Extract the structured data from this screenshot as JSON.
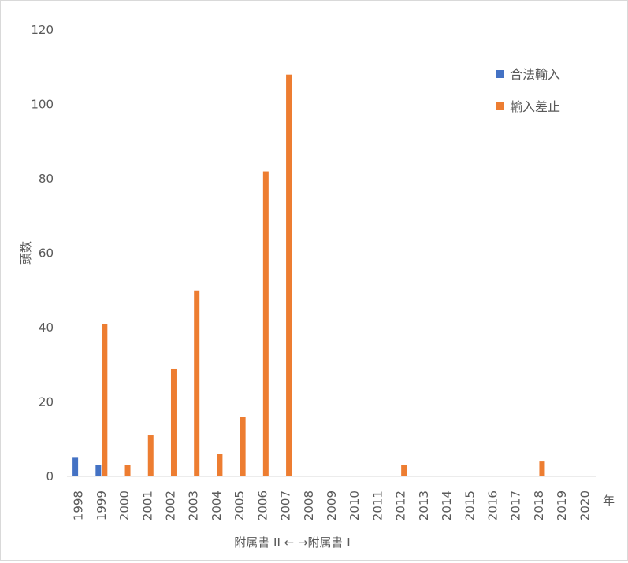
{
  "chart_data": {
    "type": "bar",
    "categories": [
      "1998",
      "1999",
      "2000",
      "2001",
      "2002",
      "2003",
      "2004",
      "2005",
      "2006",
      "2007",
      "2008",
      "2009",
      "2010",
      "2011",
      "2012",
      "2013",
      "2014",
      "2015",
      "2016",
      "2017",
      "2018",
      "2019",
      "2020"
    ],
    "series": [
      {
        "name": "合法輸入",
        "color": "#4472C4",
        "values": [
          5,
          3,
          0,
          0,
          0,
          0,
          0,
          0,
          0,
          0,
          0,
          0,
          0,
          0,
          0,
          0,
          0,
          0,
          0,
          0,
          0,
          0,
          0
        ]
      },
      {
        "name": "輸入差止",
        "color": "#ED7D31",
        "values": [
          0,
          41,
          3,
          11,
          29,
          50,
          6,
          16,
          82,
          108,
          0,
          0,
          0,
          0,
          3,
          0,
          0,
          0,
          0,
          0,
          4,
          0,
          0
        ]
      }
    ],
    "ylabel": "頭数",
    "xlabel": "年",
    "ylim": [
      0,
      120
    ],
    "yticks": [
      0,
      20,
      40,
      60,
      80,
      100,
      120
    ],
    "grid": false,
    "legend_position": "top-right",
    "annotation": "附属書 II ← →附属書 I"
  }
}
